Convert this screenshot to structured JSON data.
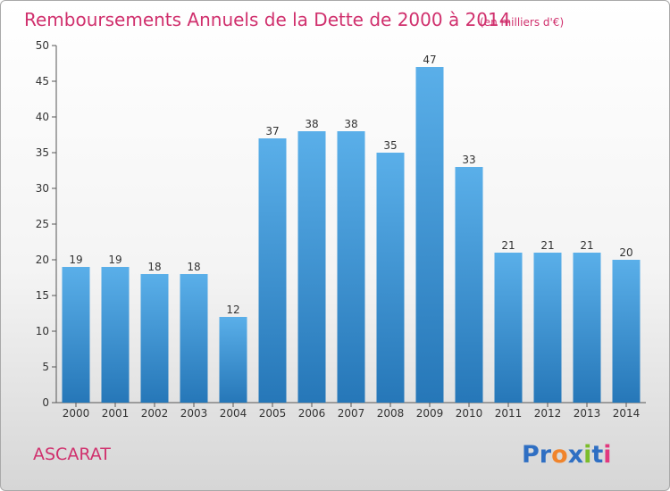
{
  "chart_data": {
    "type": "bar",
    "title": "Remboursements Annuels de la Dette de 2000 à 2014",
    "unit": "(en milliers d'€)",
    "categories": [
      "2000",
      "2001",
      "2002",
      "2003",
      "2004",
      "2005",
      "2006",
      "2007",
      "2008",
      "2009",
      "2010",
      "2011",
      "2012",
      "2013",
      "2014"
    ],
    "values": [
      19,
      19,
      18,
      18,
      12,
      37,
      38,
      38,
      35,
      47,
      33,
      21,
      21,
      21,
      20
    ],
    "yticks": [
      0,
      5,
      10,
      15,
      20,
      25,
      30,
      35,
      40,
      45,
      50
    ],
    "ylim": [
      0,
      50
    ],
    "grid": false,
    "data_labels": true,
    "bar_color_top": "#5aafe9",
    "bar_color_bottom": "#2677b8"
  },
  "footer": {
    "commune": "ASCARAT",
    "logo_text": "Proxiti",
    "logo_colors": [
      "#2f6fc3",
      "#2f6fc3",
      "#f0842c",
      "#2f6fc3",
      "#7bbd2c",
      "#2f6fc3",
      "#e2387f"
    ]
  },
  "colors": {
    "title": "#d0306d",
    "axis": "#555555"
  }
}
